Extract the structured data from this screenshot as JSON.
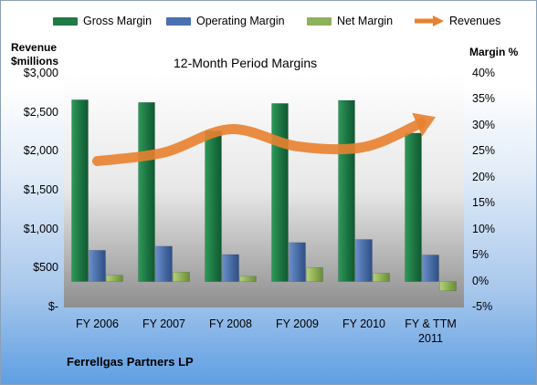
{
  "chart_data": {
    "type": "bar",
    "title": "12-Month Period Margins",
    "left_axis_label": [
      "Revenue",
      "$millions"
    ],
    "right_axis_label": "Margin %",
    "footer": "Ferrellgas Partners LP",
    "categories": [
      [
        "FY 2006"
      ],
      [
        "FY 2007"
      ],
      [
        "FY 2008"
      ],
      [
        "FY 2009"
      ],
      [
        "FY 2010"
      ],
      [
        "FY & TTM",
        "2011"
      ]
    ],
    "left_ticks": [
      "$3,000",
      "$2,500",
      "$2,000",
      "$1,500",
      "$1,000",
      "$500",
      "$-"
    ],
    "right_ticks": [
      "40%",
      "35%",
      "30%",
      "25%",
      "20%",
      "15%",
      "10%",
      "5%",
      "0%",
      "-5%"
    ],
    "left_ylim": [
      0,
      3000
    ],
    "right_ylim": [
      -5,
      40
    ],
    "series": [
      {
        "name": "Gross Margin",
        "axis": "right",
        "kind": "bar",
        "color": "#1f7a45",
        "values": [
          35,
          34.5,
          29,
          34.3,
          34.9,
          28.6
        ]
      },
      {
        "name": "Operating Margin",
        "axis": "right",
        "kind": "bar",
        "color": "#4a6fae",
        "values": [
          6,
          6.8,
          5.2,
          7.5,
          8.1,
          5.1
        ]
      },
      {
        "name": "Net Margin",
        "axis": "right",
        "kind": "bar",
        "color": "#8db25b",
        "values": [
          1.2,
          1.8,
          1.0,
          2.7,
          1.6,
          -1.8
        ]
      },
      {
        "name": "Revenues",
        "axis": "left",
        "kind": "line",
        "color": "#e8812f",
        "values": [
          1880,
          1990,
          2290,
          2070,
          2060,
          2420
        ]
      }
    ],
    "grid": false,
    "legend_position": "top"
  }
}
